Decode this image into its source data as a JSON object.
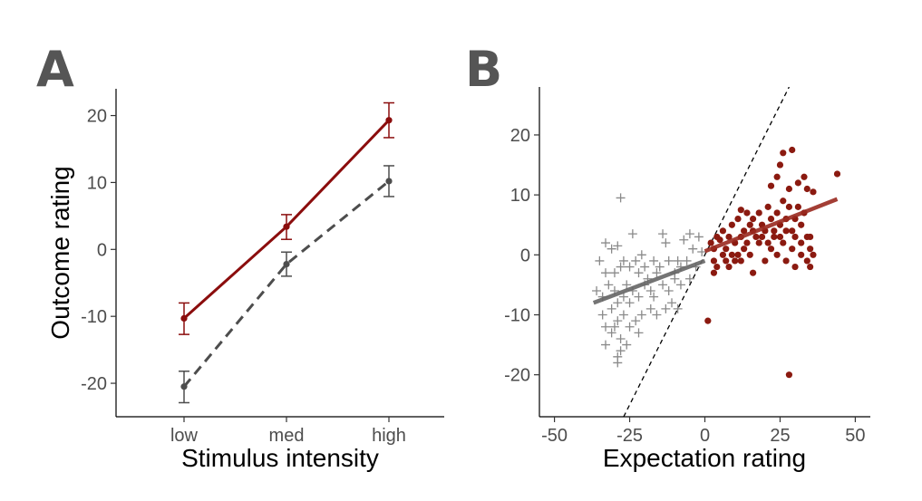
{
  "chart_data": [
    {
      "type": "line",
      "panel_label": "A",
      "xlabel": "Stimulus intensity",
      "ylabel": "Outcome rating",
      "categories": [
        "low",
        "med",
        "high"
      ],
      "ylim": [
        -25,
        24
      ],
      "yticks": [
        "-20",
        "-10",
        "0",
        "10",
        "20"
      ],
      "grid": false,
      "legend": "none",
      "series": [
        {
          "color": "#8B0D0D",
          "line_style": "solid",
          "values": [
            -10.3,
            3.4,
            19.3
          ],
          "error_low": [
            -12.7,
            1.5,
            16.7
          ],
          "error_high": [
            -8.0,
            5.2,
            21.9
          ]
        },
        {
          "color": "#4D4D4D",
          "line_style": "dashed",
          "values": [
            -20.5,
            -2.2,
            10.2
          ],
          "error_low": [
            -22.9,
            -4.0,
            7.9
          ],
          "error_high": [
            -18.2,
            -0.4,
            12.5
          ]
        }
      ]
    },
    {
      "type": "scatter",
      "panel_label": "B",
      "xlabel": "Expectation rating",
      "ylabel": "",
      "xlim": [
        -55,
        55
      ],
      "ylim": [
        -27,
        28
      ],
      "xticks": [
        "-50",
        "-25",
        "0",
        "25",
        "50"
      ],
      "yticks": [
        "-20",
        "-10",
        "0",
        "10",
        "20"
      ],
      "grid": false,
      "legend": "none",
      "identity_line": {
        "slope": 1,
        "intercept": 0,
        "style": "dashed",
        "color": "#000000"
      },
      "series": [
        {
          "marker": "plus",
          "color": "#8a8a8a",
          "fit": {
            "color": "#666666",
            "x": [
              -37,
              0
            ],
            "y": [
              -8.0,
              -1.0
            ]
          },
          "points": [
            [
              -28,
              9.5
            ],
            [
              -33,
              2
            ],
            [
              -31,
              1
            ],
            [
              -29,
              1.5
            ],
            [
              -24,
              3.5
            ],
            [
              -21,
              0
            ],
            [
              -14,
              3.5
            ],
            [
              -13,
              2
            ],
            [
              -7,
              2.5
            ],
            [
              -5,
              3.5
            ],
            [
              -4,
              1
            ],
            [
              -2,
              3
            ],
            [
              -1,
              0.5
            ],
            [
              -35,
              -1
            ],
            [
              -33,
              -3
            ],
            [
              -30,
              -3
            ],
            [
              -28,
              -2
            ],
            [
              -27,
              -1
            ],
            [
              -25,
              -2
            ],
            [
              -23,
              -1
            ],
            [
              -22,
              -3
            ],
            [
              -20,
              -2
            ],
            [
              -19,
              -4
            ],
            [
              -17,
              -1
            ],
            [
              -16,
              -3
            ],
            [
              -15,
              -2
            ],
            [
              -12,
              -1
            ],
            [
              -10,
              -3
            ],
            [
              -9,
              -1
            ],
            [
              -8,
              -2
            ],
            [
              -6,
              -1
            ],
            [
              -3,
              -2
            ],
            [
              -36,
              -6
            ],
            [
              -34,
              -7
            ],
            [
              -32,
              -5
            ],
            [
              -30,
              -6
            ],
            [
              -29,
              -8
            ],
            [
              -27,
              -7
            ],
            [
              -26,
              -5
            ],
            [
              -24,
              -6
            ],
            [
              -22,
              -7
            ],
            [
              -20,
              -5
            ],
            [
              -18,
              -6
            ],
            [
              -17,
              -7
            ],
            [
              -14,
              -5
            ],
            [
              -12,
              -6
            ],
            [
              -10,
              -4
            ],
            [
              -8,
              -5
            ],
            [
              -5,
              -4
            ],
            [
              -31,
              -9
            ],
            [
              -29,
              -11
            ],
            [
              -27,
              -10
            ],
            [
              -25,
              -8
            ],
            [
              -23,
              -11
            ],
            [
              -21,
              -10
            ],
            [
              -18,
              -9
            ],
            [
              -16,
              -10
            ],
            [
              -13,
              -9
            ],
            [
              -11,
              -8
            ],
            [
              -9,
              -9
            ],
            [
              -34,
              -10
            ],
            [
              -33,
              -12
            ],
            [
              -31,
              -13
            ],
            [
              -30,
              -12
            ],
            [
              -28,
              -16
            ],
            [
              -29,
              -17
            ],
            [
              -28,
              -14
            ],
            [
              -26,
              -15
            ],
            [
              -25,
              -12
            ],
            [
              -22,
              -13
            ],
            [
              -33,
              -15
            ],
            [
              -29,
              -18
            ]
          ]
        },
        {
          "marker": "circle",
          "color": "#8B1A10",
          "fit": {
            "color": "#9A2A20",
            "x": [
              0,
              44
            ],
            "y": [
              0.6,
              9.3
            ]
          },
          "points": [
            [
              12,
              7.5
            ],
            [
              22,
              11.5
            ],
            [
              24,
              13
            ],
            [
              25,
              15
            ],
            [
              26,
              17
            ],
            [
              29,
              17.5
            ],
            [
              31,
              12
            ],
            [
              28,
              11
            ],
            [
              33,
              13
            ],
            [
              34,
              11
            ],
            [
              36,
              10.5
            ],
            [
              44,
              13.5
            ],
            [
              1,
              -11
            ],
            [
              28,
              -20
            ],
            [
              2,
              2
            ],
            [
              3,
              1
            ],
            [
              4,
              3
            ],
            [
              5,
              2.5
            ],
            [
              6,
              4
            ],
            [
              7,
              1
            ],
            [
              8,
              3
            ],
            [
              9,
              5
            ],
            [
              10,
              2
            ],
            [
              11,
              6
            ],
            [
              12,
              3
            ],
            [
              13,
              4
            ],
            [
              14,
              7
            ],
            [
              15,
              5
            ],
            [
              16,
              6
            ],
            [
              17,
              3
            ],
            [
              18,
              7
            ],
            [
              19,
              5
            ],
            [
              20,
              4
            ],
            [
              21,
              8
            ],
            [
              22,
              6
            ],
            [
              23,
              4
            ],
            [
              24,
              7
            ],
            [
              25,
              5
            ],
            [
              26,
              9
            ],
            [
              27,
              6
            ],
            [
              28,
              8
            ],
            [
              29,
              4
            ],
            [
              30,
              6
            ],
            [
              31,
              8
            ],
            [
              32,
              5
            ],
            [
              33,
              7
            ],
            [
              35,
              3
            ],
            [
              3,
              -1
            ],
            [
              4,
              -2
            ],
            [
              6,
              0
            ],
            [
              7,
              -1
            ],
            [
              9,
              0
            ],
            [
              10,
              -1
            ],
            [
              11,
              0
            ],
            [
              13,
              1
            ],
            [
              15,
              0
            ],
            [
              16,
              -3
            ],
            [
              18,
              2
            ],
            [
              20,
              -1
            ],
            [
              22,
              1
            ],
            [
              24,
              0
            ],
            [
              26,
              2
            ],
            [
              27,
              -1
            ],
            [
              29,
              1
            ],
            [
              30,
              -2
            ],
            [
              32,
              0
            ],
            [
              34,
              -1
            ],
            [
              35,
              -2
            ],
            [
              36,
              0
            ],
            [
              3,
              -3
            ],
            [
              8,
              -2
            ],
            [
              12,
              -1
            ],
            [
              14,
              2
            ],
            [
              16,
              4
            ],
            [
              19,
              3
            ],
            [
              21,
              2
            ],
            [
              23,
              3
            ],
            [
              25,
              3
            ],
            [
              27,
              4
            ],
            [
              30,
              3
            ],
            [
              32,
              2
            ],
            [
              34,
              3
            ],
            [
              35,
              1
            ]
          ]
        }
      ]
    }
  ]
}
